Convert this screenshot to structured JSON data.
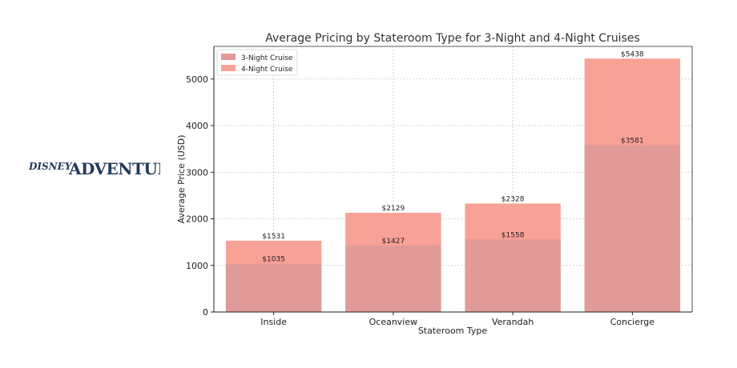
{
  "logo": {
    "word1": "DISNEY",
    "word2": "ADVENTURE",
    "color": "#243b5a"
  },
  "chart_data": {
    "type": "bar",
    "title": "Average Pricing by Stateroom Type for 3-Night and 4-Night Cruises",
    "xlabel": "Stateroom Type",
    "ylabel": "Average Price (USD)",
    "categories": [
      "Inside",
      "Oceanview",
      "Verandah",
      "Concierge"
    ],
    "ylim": [
      0,
      5700
    ],
    "yticks": [
      0,
      1000,
      2000,
      3000,
      4000,
      5000
    ],
    "grid": true,
    "legend_position": "top-left",
    "overlaid": true,
    "label_prefix": "$",
    "series": [
      {
        "name": "4-Night Cruise",
        "values": [
          1531,
          2129,
          2328,
          5438
        ],
        "color": "#f8a196"
      },
      {
        "name": "3-Night Cruise",
        "values": [
          1035,
          1427,
          1558,
          3581
        ],
        "color": "#e09b98"
      }
    ],
    "legend": [
      "3-Night Cruise",
      "4-Night Cruise"
    ]
  }
}
